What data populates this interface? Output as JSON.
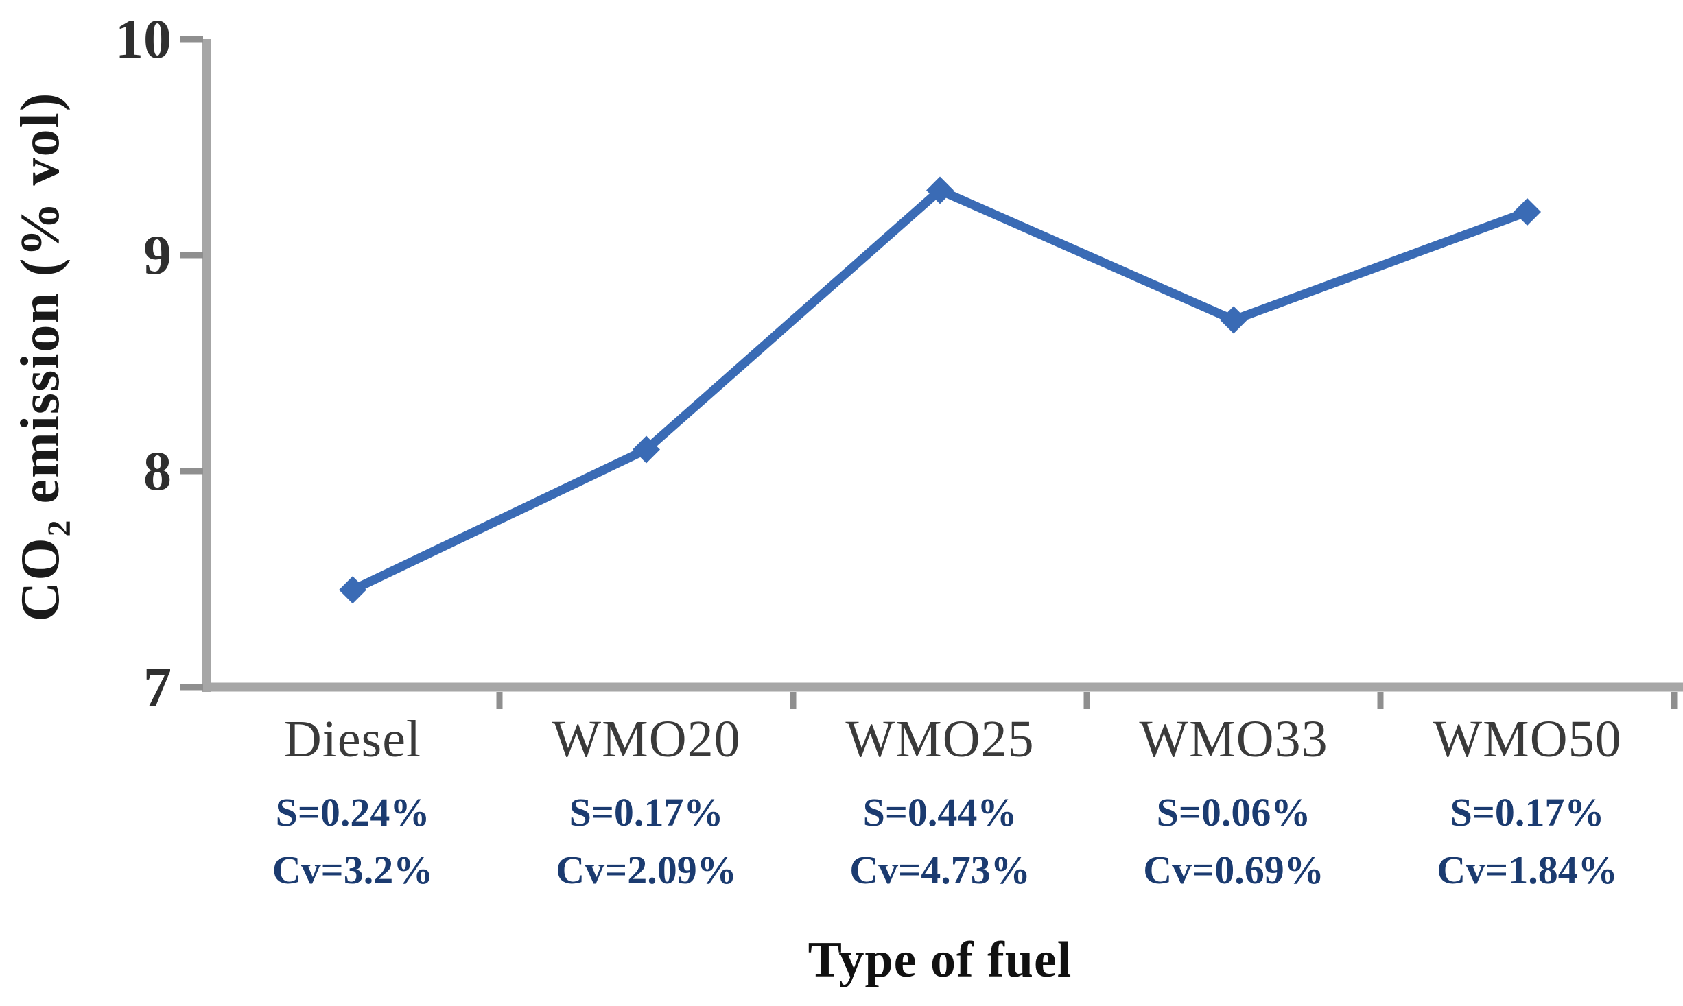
{
  "chart_data": {
    "type": "line",
    "title": "",
    "xlabel": "Type of fuel",
    "ylabel": "CO2 emission (% vol)",
    "ylabel_parts": {
      "prefix": "CO",
      "sub": "2",
      "suffix": " emission (% vol)"
    },
    "categories": [
      "Diesel",
      "WMO20",
      "WMO25",
      "WMO33",
      "WMO50"
    ],
    "values": [
      7.45,
      8.1,
      9.3,
      8.7,
      9.2
    ],
    "series": [
      {
        "name": "CO2 emission",
        "values": [
          7.45,
          8.1,
          9.3,
          8.7,
          9.2
        ]
      }
    ],
    "annotations": [
      {
        "s": "S=0.24%",
        "cv": "Cv=3.2%"
      },
      {
        "s": "S=0.17%",
        "cv": "Cv=2.09%"
      },
      {
        "s": "S=0.44%",
        "cv": "Cv=4.73%"
      },
      {
        "s": "S=0.06%",
        "cv": "Cv=0.69%"
      },
      {
        "s": "S=0.17%",
        "cv": "Cv=1.84%"
      }
    ],
    "yticks": [
      "10",
      "9",
      "8",
      "7"
    ],
    "ytick_values": [
      10,
      9,
      8,
      7
    ],
    "ylim": [
      7,
      10
    ],
    "grid": false,
    "legend": null,
    "marker": "diamond",
    "line_color": "#3a6bb5",
    "annotation_color": "#1b3b70",
    "axis_color": "#a6a6a6",
    "tick_color": "#8f8f8f"
  }
}
